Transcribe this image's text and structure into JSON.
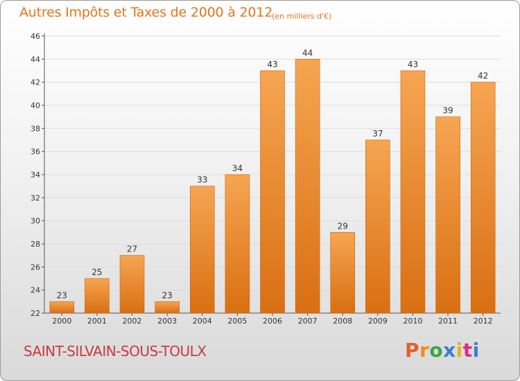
{
  "header": {
    "title": "Autres Impôts et Taxes de 2000 à 2012",
    "subtitle": "(en milliers d'€)"
  },
  "footer": {
    "city": "SAINT-SILVAIN-SOUS-TOULX",
    "logo_text": "Proxiti",
    "logo_colors": [
      "#e25e2a",
      "#f08b1e",
      "#38a544",
      "#3a7fcf",
      "#e8b21d",
      "#d62e8a",
      "#3a7fcf"
    ]
  },
  "colors": {
    "bar_top": "#f6a552",
    "bar_bottom": "#d96f12",
    "grid": "#dddddd",
    "axis_text": "#333333",
    "title": "#e87319",
    "city": "#c8393f"
  },
  "chart_data": {
    "type": "bar",
    "title": "Autres Impôts et Taxes de 2000 à 2012",
    "categories": [
      "2000",
      "2001",
      "2002",
      "2003",
      "2004",
      "2005",
      "2006",
      "2007",
      "2008",
      "2009",
      "2010",
      "2011",
      "2012"
    ],
    "values": [
      23,
      25,
      27,
      23,
      33,
      34,
      43,
      44,
      29,
      37,
      43,
      39,
      42
    ],
    "ylim": [
      22,
      46
    ],
    "yticks": [
      22,
      24,
      26,
      28,
      30,
      32,
      34,
      36,
      38,
      40,
      42,
      44,
      46
    ],
    "grid": "horizontal",
    "xlabel": "",
    "ylabel": ""
  }
}
